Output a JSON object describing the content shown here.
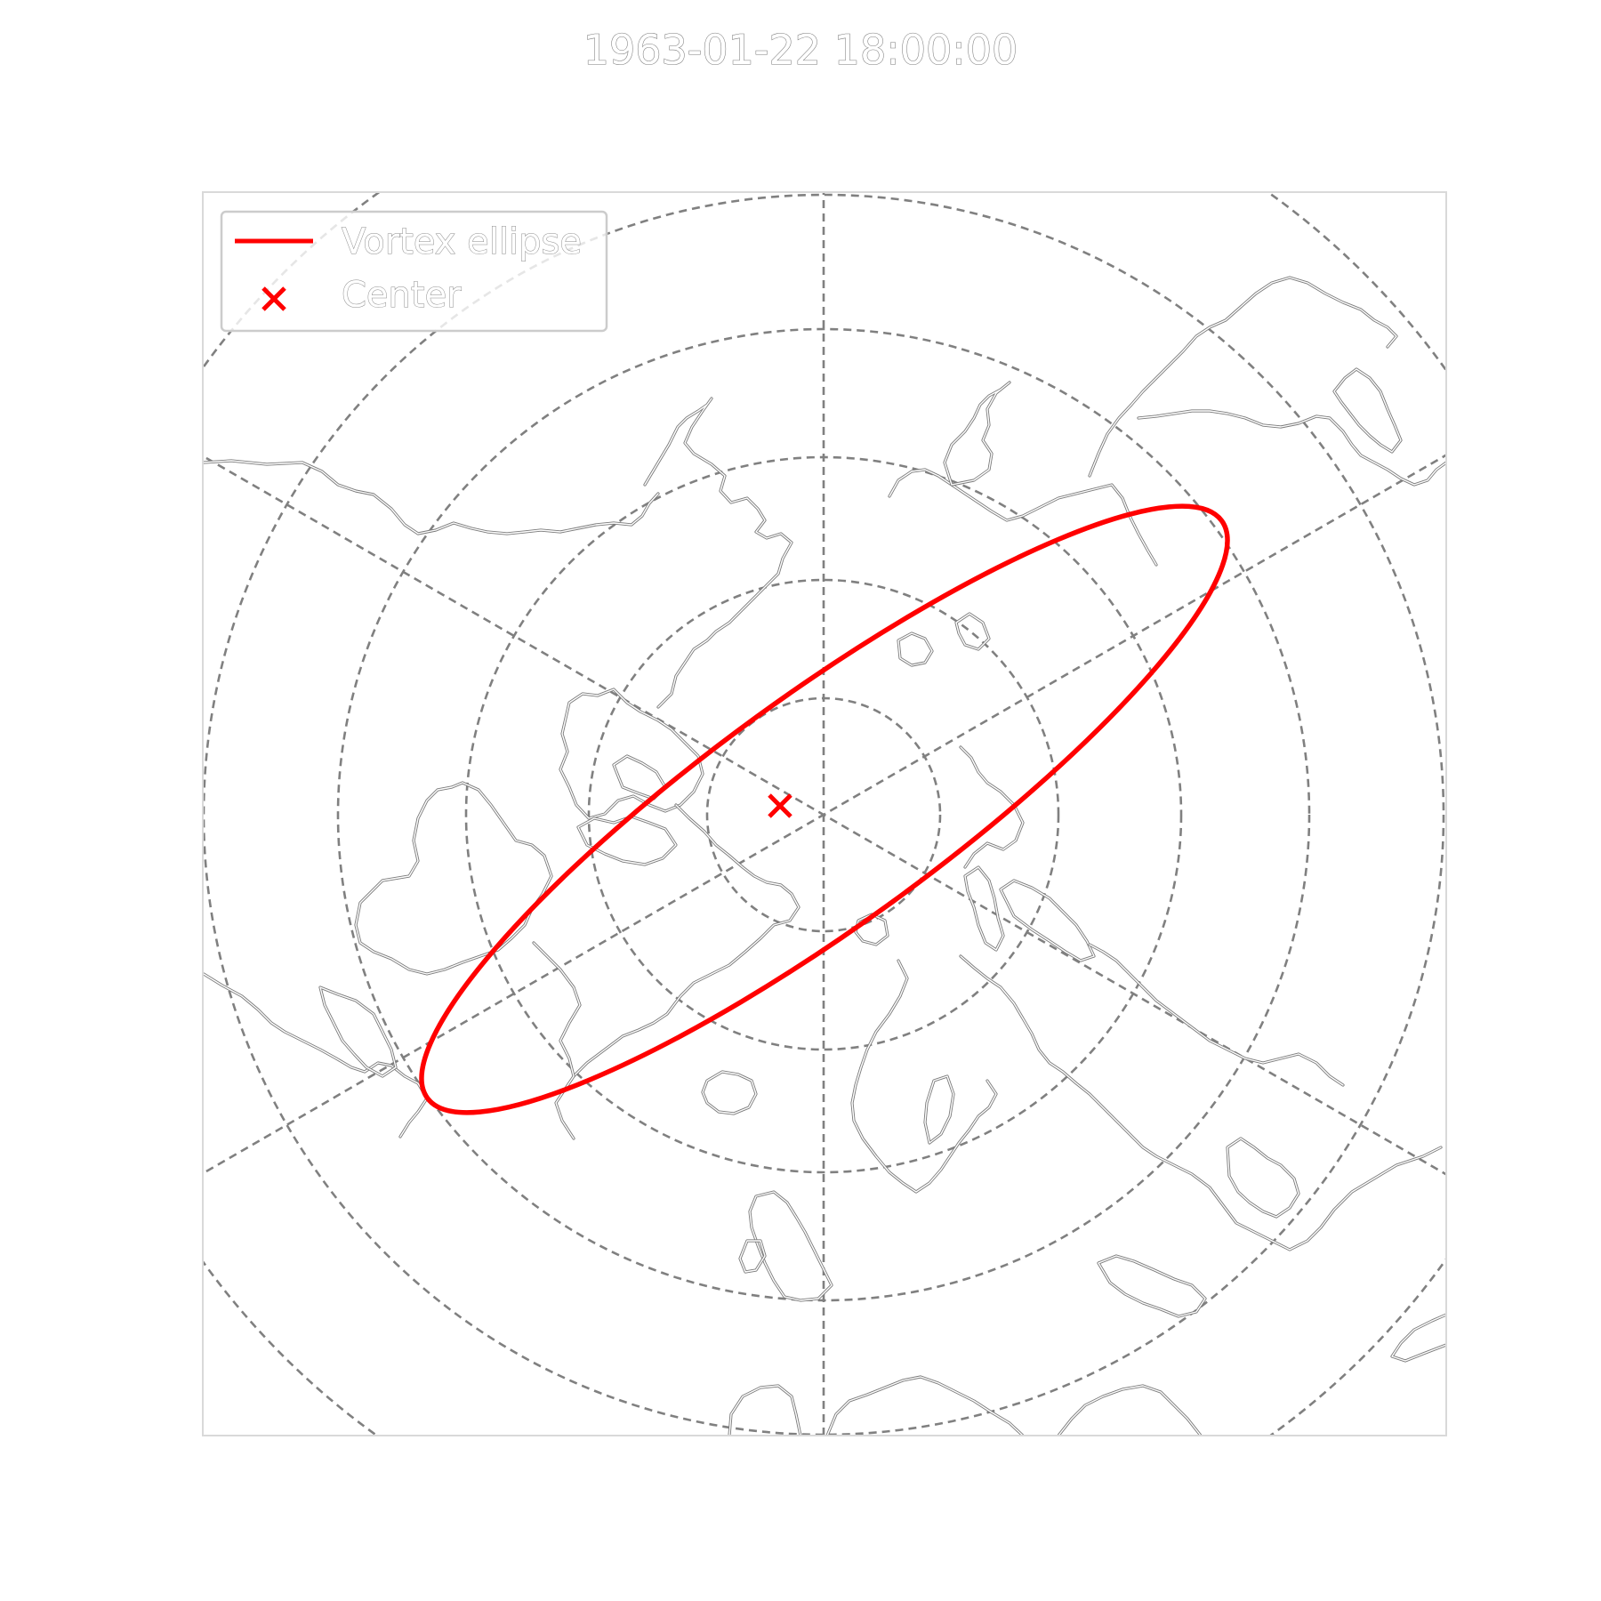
{
  "title": "1963-01-22 18:00:00",
  "legend": {
    "placement": "upper-left",
    "items": [
      {
        "label": "Vortex ellipse",
        "marker": "line"
      },
      {
        "label": "Center",
        "marker": "x"
      }
    ]
  },
  "map": {
    "projection": "north-polar-stereographic",
    "graticule": {
      "style": "dashed",
      "color": "#808080",
      "parallels": 5,
      "meridians": 6
    },
    "coastlines": {
      "style": "outlined",
      "color": "#7a7a7a"
    }
  },
  "vortex": {
    "color": "#ff0000",
    "ellipse": {
      "orientation_deg": -36,
      "aspect_ratio": 4.3
    },
    "center_marker": "x"
  }
}
